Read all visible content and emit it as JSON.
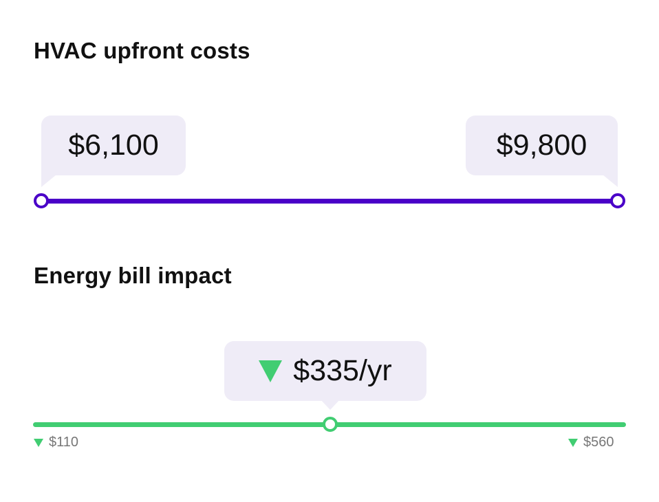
{
  "colors": {
    "accent_purple": "#4a00c8",
    "accent_green": "#41cd72",
    "bubble_bg": "#efecf7"
  },
  "upfront": {
    "title": "HVAC upfront costs",
    "min_value": "$6,100",
    "max_value": "$9,800"
  },
  "energy": {
    "title": "Energy bill impact",
    "current_value": "$335/yr",
    "current_icon": "triangle-down-icon",
    "min_label": "$110",
    "max_label": "$560",
    "current_fraction": 0.5
  }
}
